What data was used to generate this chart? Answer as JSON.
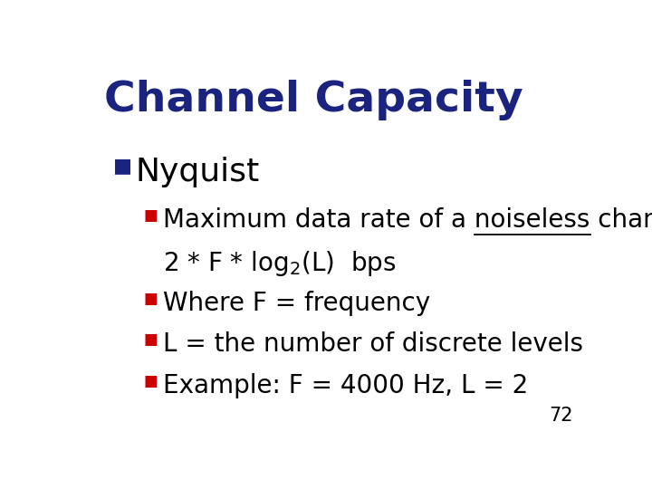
{
  "title": "Channel Capacity",
  "title_color": "#1a237e",
  "title_fontsize": 34,
  "background_color": "#ffffff",
  "text_color": "#000000",
  "l1_bullet_color": "#1a237e",
  "l2_bullet_color": "#cc0000",
  "l1_text": "Nyquist",
  "l1_fontsize": 26,
  "l2_fontsize": 20,
  "line0_prefix": "Maximum data rate of a ",
  "line0_underlined": "noiseless",
  "line0_suffix": " channel =",
  "line1": "2 * F * log$_2$(L)  bps",
  "line2": "Where F = frequency",
  "line3": "L = the number of discrete levels",
  "line4": "Example: F = 4000 Hz, L = 2",
  "page_number": "72",
  "page_number_fontsize": 15
}
